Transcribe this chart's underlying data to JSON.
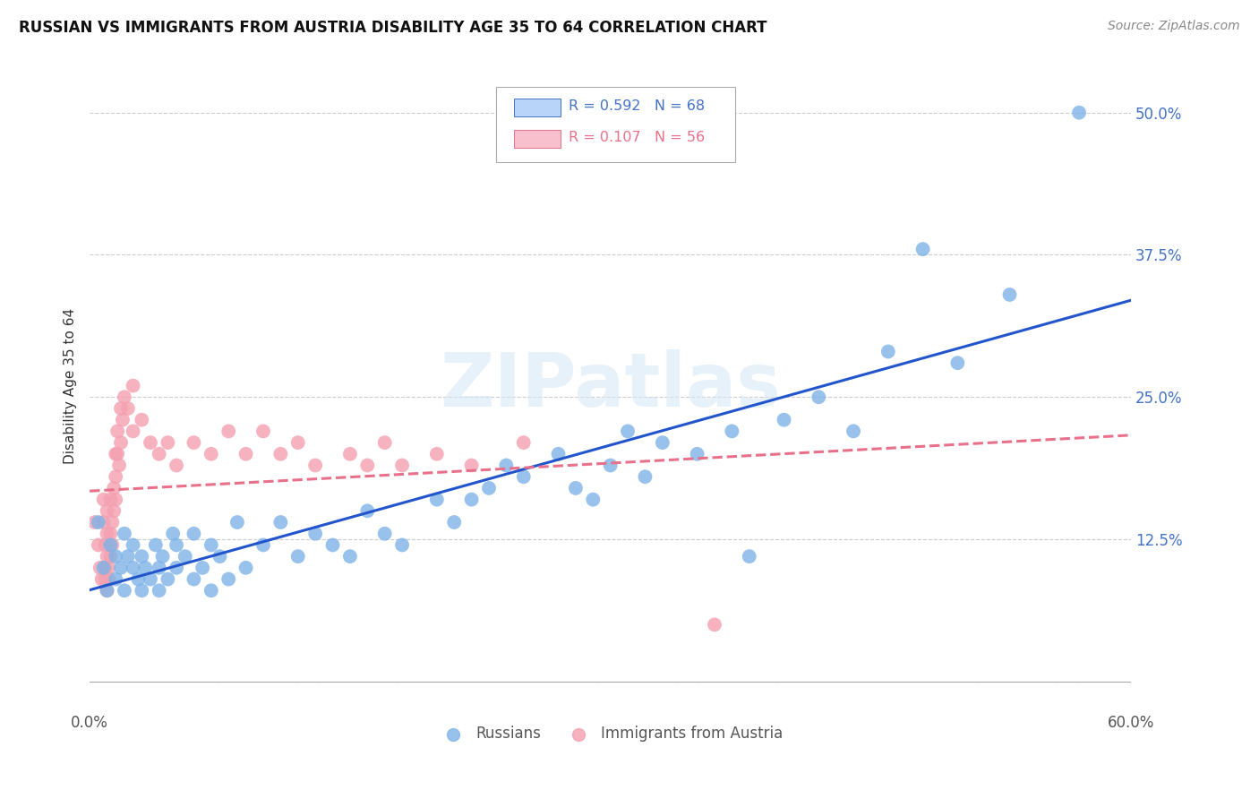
{
  "title": "RUSSIAN VS IMMIGRANTS FROM AUSTRIA DISABILITY AGE 35 TO 64 CORRELATION CHART",
  "source": "Source: ZipAtlas.com",
  "ylabel": "Disability Age 35 to 64",
  "xlim": [
    0.0,
    0.6
  ],
  "ylim": [
    -0.025,
    0.545
  ],
  "yticks": [
    0.0,
    0.125,
    0.25,
    0.375,
    0.5
  ],
  "yticklabels": [
    "",
    "12.5%",
    "25.0%",
    "37.5%",
    "50.0%"
  ],
  "xticks": [
    0.0,
    0.1,
    0.2,
    0.3,
    0.4,
    0.5,
    0.6
  ],
  "xticklabels": [
    "0.0%",
    "",
    "",
    "",
    "",
    "",
    "60.0%"
  ],
  "russian_R": 0.592,
  "russian_N": 68,
  "austria_R": 0.107,
  "austria_N": 56,
  "russian_color": "#7EB3E8",
  "austria_color": "#F4A0B0",
  "russian_line_color": "#2255CC",
  "austria_line_color": "#E8708A",
  "watermark": "ZIPatlas",
  "background_color": "#FFFFFF",
  "grid_color": "#CCCCCC",
  "legend_box_russian": "#B8D4F8",
  "legend_box_austria": "#F8C0CC",
  "russian_scatter_x": [
    0.005,
    0.008,
    0.01,
    0.012,
    0.015,
    0.015,
    0.018,
    0.02,
    0.02,
    0.022,
    0.025,
    0.025,
    0.028,
    0.03,
    0.03,
    0.032,
    0.035,
    0.038,
    0.04,
    0.04,
    0.042,
    0.045,
    0.048,
    0.05,
    0.05,
    0.055,
    0.06,
    0.06,
    0.065,
    0.07,
    0.07,
    0.075,
    0.08,
    0.085,
    0.09,
    0.1,
    0.11,
    0.12,
    0.13,
    0.14,
    0.15,
    0.16,
    0.17,
    0.18,
    0.2,
    0.21,
    0.22,
    0.23,
    0.24,
    0.25,
    0.27,
    0.28,
    0.29,
    0.3,
    0.31,
    0.32,
    0.33,
    0.35,
    0.37,
    0.38,
    0.4,
    0.42,
    0.44,
    0.46,
    0.48,
    0.5,
    0.53,
    0.57
  ],
  "russian_scatter_y": [
    0.14,
    0.1,
    0.08,
    0.12,
    0.09,
    0.11,
    0.1,
    0.13,
    0.08,
    0.11,
    0.1,
    0.12,
    0.09,
    0.08,
    0.11,
    0.1,
    0.09,
    0.12,
    0.1,
    0.08,
    0.11,
    0.09,
    0.13,
    0.1,
    0.12,
    0.11,
    0.09,
    0.13,
    0.1,
    0.12,
    0.08,
    0.11,
    0.09,
    0.14,
    0.1,
    0.12,
    0.14,
    0.11,
    0.13,
    0.12,
    0.11,
    0.15,
    0.13,
    0.12,
    0.16,
    0.14,
    0.16,
    0.17,
    0.19,
    0.18,
    0.2,
    0.17,
    0.16,
    0.19,
    0.22,
    0.18,
    0.21,
    0.2,
    0.22,
    0.11,
    0.23,
    0.25,
    0.22,
    0.29,
    0.38,
    0.28,
    0.34,
    0.5
  ],
  "austria_scatter_x": [
    0.003,
    0.005,
    0.006,
    0.007,
    0.008,
    0.008,
    0.009,
    0.009,
    0.009,
    0.01,
    0.01,
    0.01,
    0.01,
    0.011,
    0.011,
    0.012,
    0.012,
    0.012,
    0.013,
    0.013,
    0.014,
    0.014,
    0.015,
    0.015,
    0.015,
    0.016,
    0.016,
    0.017,
    0.018,
    0.018,
    0.019,
    0.02,
    0.022,
    0.025,
    0.025,
    0.03,
    0.035,
    0.04,
    0.045,
    0.05,
    0.06,
    0.07,
    0.08,
    0.09,
    0.1,
    0.11,
    0.12,
    0.13,
    0.15,
    0.16,
    0.17,
    0.18,
    0.2,
    0.22,
    0.25,
    0.36
  ],
  "austria_scatter_y": [
    0.14,
    0.12,
    0.1,
    0.09,
    0.16,
    0.14,
    0.12,
    0.1,
    0.09,
    0.08,
    0.11,
    0.13,
    0.15,
    0.1,
    0.09,
    0.16,
    0.13,
    0.11,
    0.14,
    0.12,
    0.17,
    0.15,
    0.2,
    0.18,
    0.16,
    0.22,
    0.2,
    0.19,
    0.24,
    0.21,
    0.23,
    0.25,
    0.24,
    0.22,
    0.26,
    0.23,
    0.21,
    0.2,
    0.21,
    0.19,
    0.21,
    0.2,
    0.22,
    0.2,
    0.22,
    0.2,
    0.21,
    0.19,
    0.2,
    0.19,
    0.21,
    0.19,
    0.2,
    0.19,
    0.21,
    0.05
  ]
}
